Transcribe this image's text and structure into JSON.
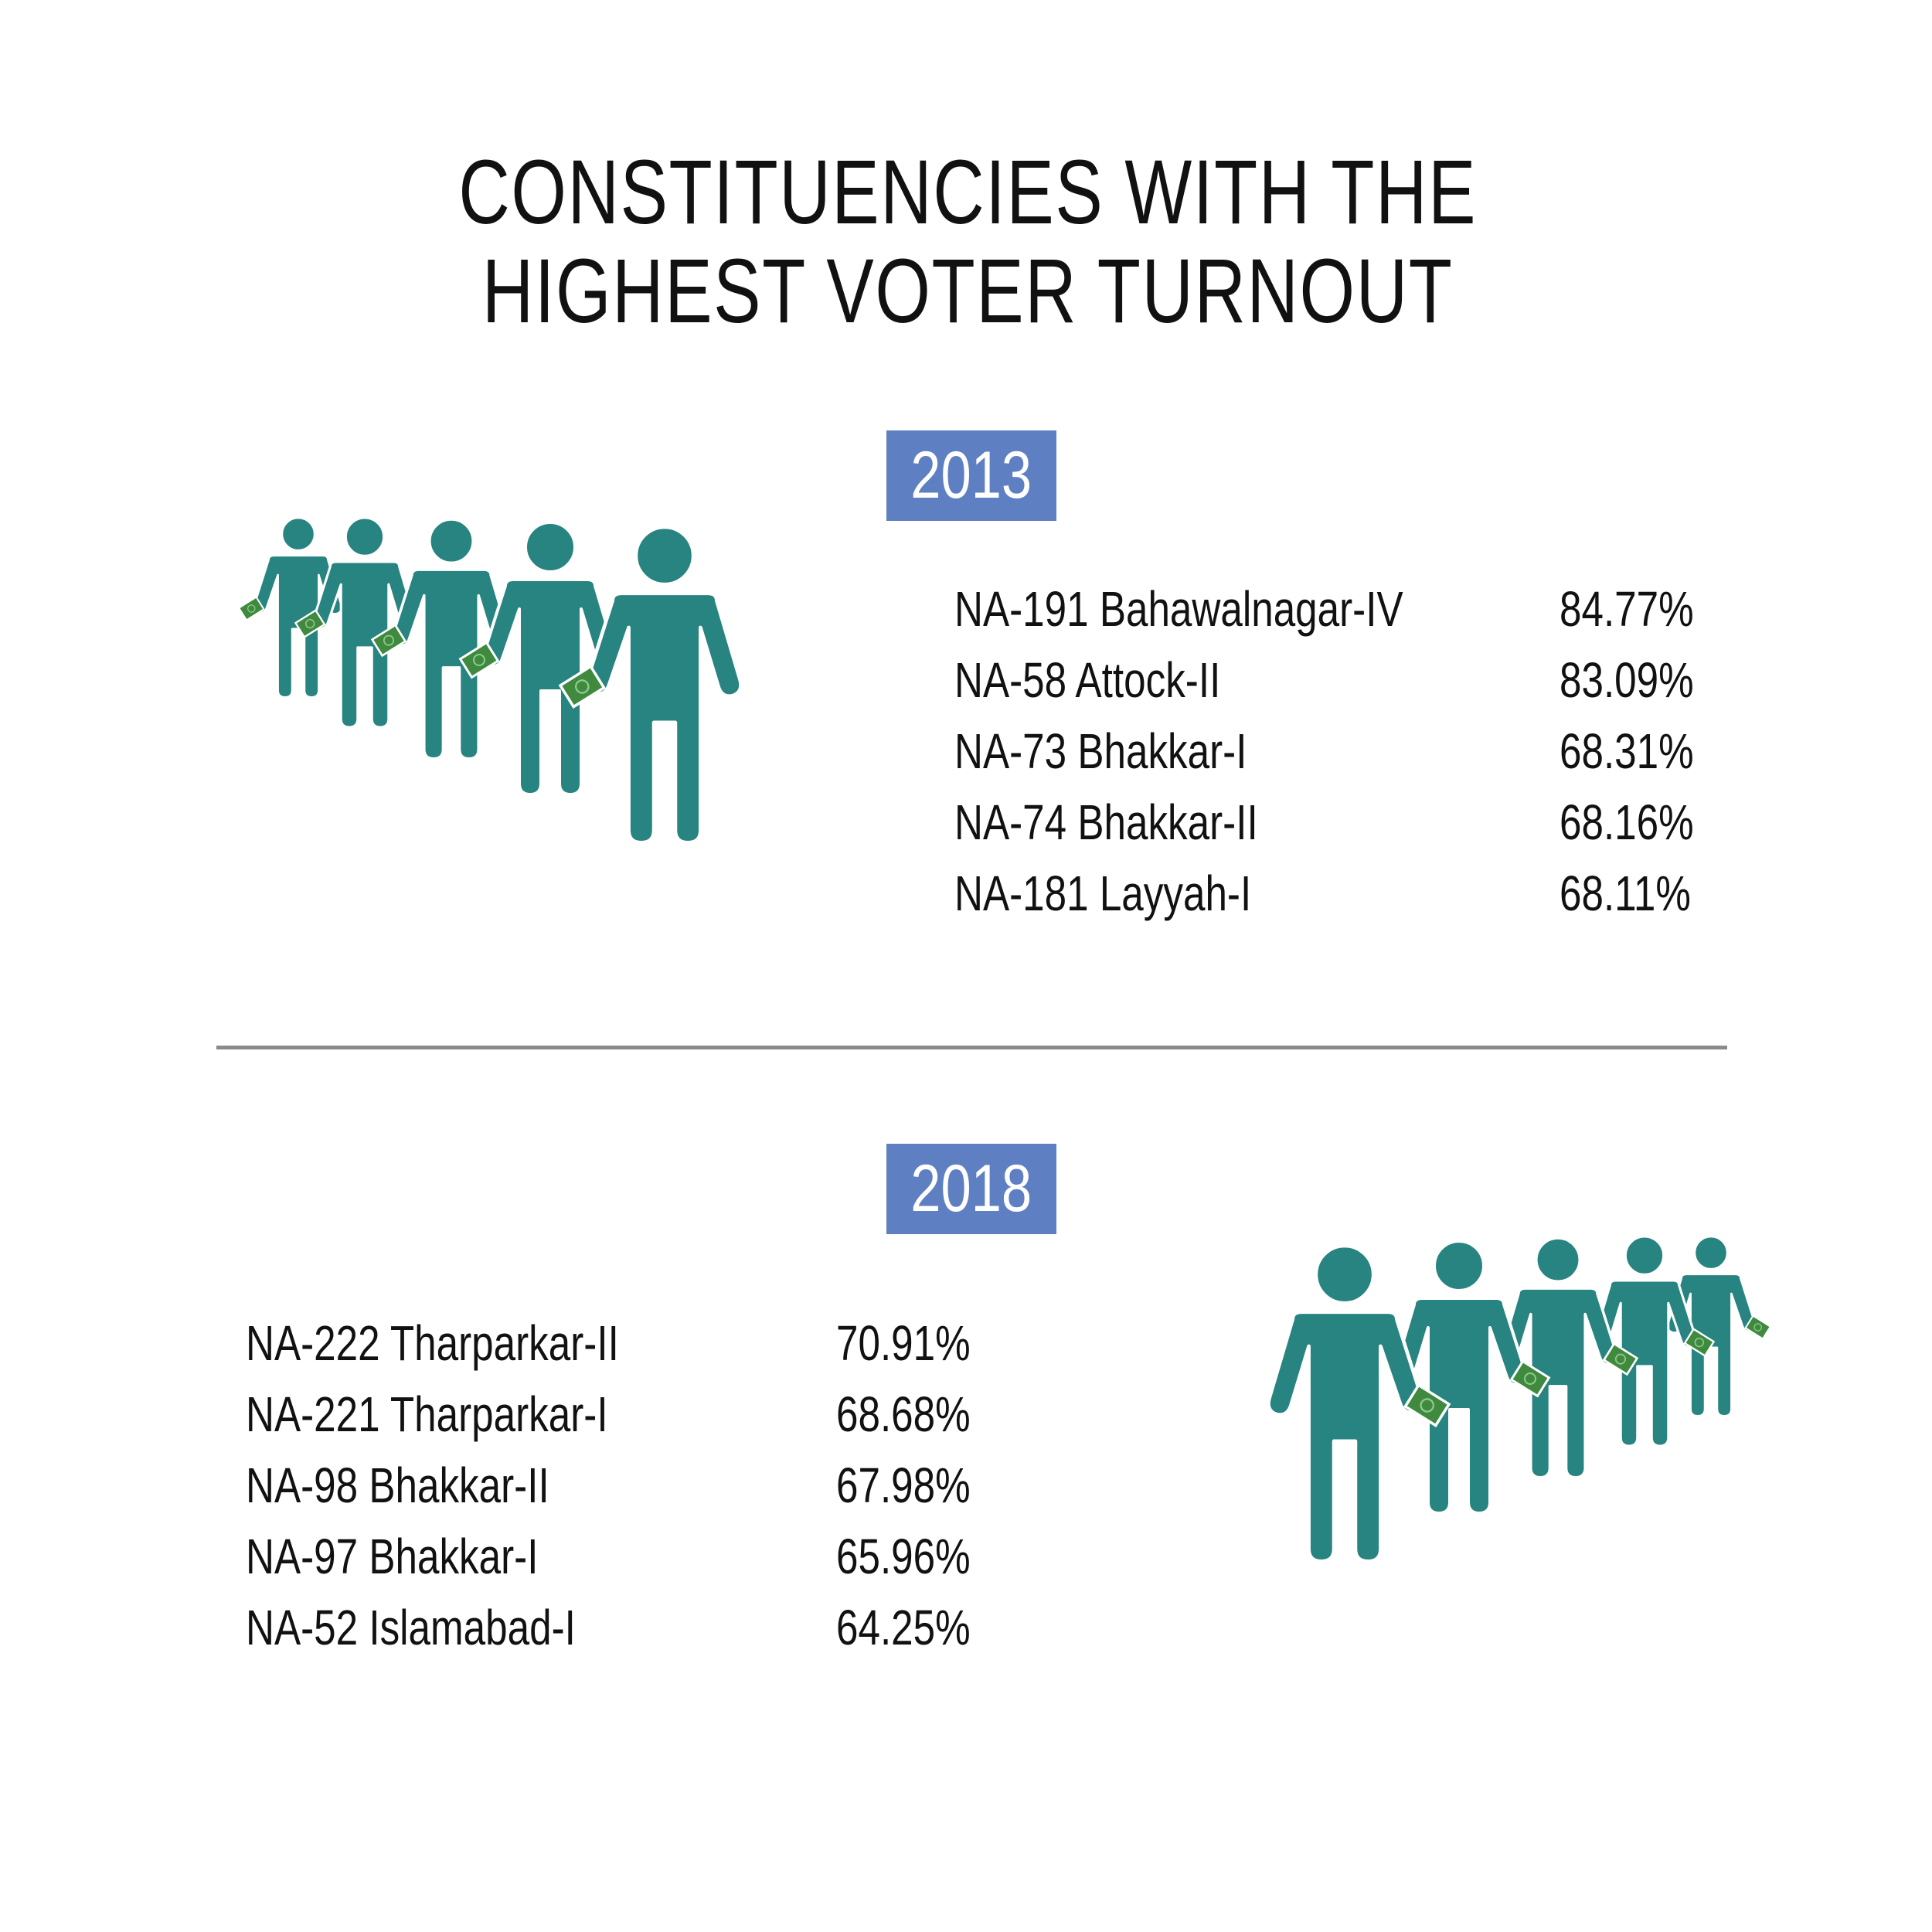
{
  "title_lines": [
    "CONSTITUENCIES WITH THE",
    "HIGHEST VOTER TURNOUT"
  ],
  "colors": {
    "figure": "#278480",
    "ballot": "#3f8a3e",
    "year_badge": "#5f7fc3",
    "divider": "#8a8a8a"
  },
  "sections": [
    {
      "year": "2013",
      "rows": [
        {
          "name": "NA-191 Bahawalnagar-IV",
          "pct": "84.77%"
        },
        {
          "name": "NA-58 Attock-II",
          "pct": "83.09%"
        },
        {
          "name": "NA-73 Bhakkar-I",
          "pct": "68.31%"
        },
        {
          "name": "NA-74 Bhakkar-II",
          "pct": "68.16%"
        },
        {
          "name": "NA-181 Layyah-I",
          "pct": "68.11%"
        }
      ]
    },
    {
      "year": "2018",
      "rows": [
        {
          "name": "NA-222 Tharparkar-II",
          "pct": "70.91%"
        },
        {
          "name": "NA-221 Tharparkar-I",
          "pct": "68.68%"
        },
        {
          "name": "NA-98 Bhakkar-II",
          "pct": "67.98%"
        },
        {
          "name": "NA-97 Bhakkar-I",
          "pct": "65.96%"
        },
        {
          "name": "NA-52 Islamabad-I",
          "pct": "64.25%"
        }
      ]
    }
  ]
}
